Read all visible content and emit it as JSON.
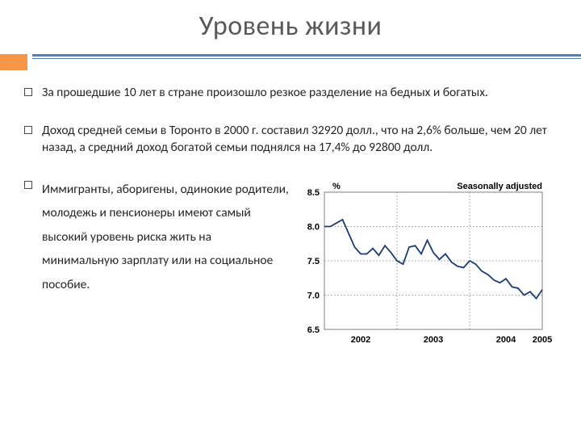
{
  "title": "Уровень жизни",
  "bullets": [
    "За прошедшие 10 лет в стране произошло резкое разделение на бедных и богатых.",
    "Доход средней семьи в Торонто в 2000 г. составил 32920 долл., что на 2,6% больше, чем 20 лет назад, а средний доход богатой семьи поднялся на 17,4% до 92800 долл.",
    "Иммигранты, аборигены, одинокие родители, молодежь и пенсионеры имеют самый высокий уровень риска жить на минимальную зарплату или на социальное пособие."
  ],
  "colors": {
    "accent": "#f79646",
    "rule": "#4f81bd",
    "title": "#595959",
    "text": "#262626",
    "series": "#1a3a7a",
    "grid": "#b0b0b0",
    "bg": "#ffffff"
  },
  "chart": {
    "type": "line",
    "y_label": "%",
    "legend": "Seasonally adjusted",
    "ylim": [
      6.5,
      8.5
    ],
    "yticks": [
      6.5,
      7.0,
      7.5,
      8.0,
      8.5
    ],
    "xlabels": [
      "2002",
      "2003",
      "2004",
      "2005"
    ],
    "xrange": [
      0,
      36
    ],
    "series_y": [
      8.0,
      8.0,
      8.05,
      8.1,
      7.9,
      7.7,
      7.6,
      7.6,
      7.68,
      7.58,
      7.72,
      7.62,
      7.5,
      7.45,
      7.7,
      7.72,
      7.6,
      7.8,
      7.62,
      7.52,
      7.6,
      7.48,
      7.42,
      7.4,
      7.5,
      7.45,
      7.35,
      7.3,
      7.22,
      7.18,
      7.24,
      7.12,
      7.1,
      7.0,
      7.05,
      6.95,
      7.08
    ],
    "line_width": 1.8,
    "label_fontsize": 11,
    "background_color": "#ffffff",
    "grid_color": "#b0b0b0"
  }
}
